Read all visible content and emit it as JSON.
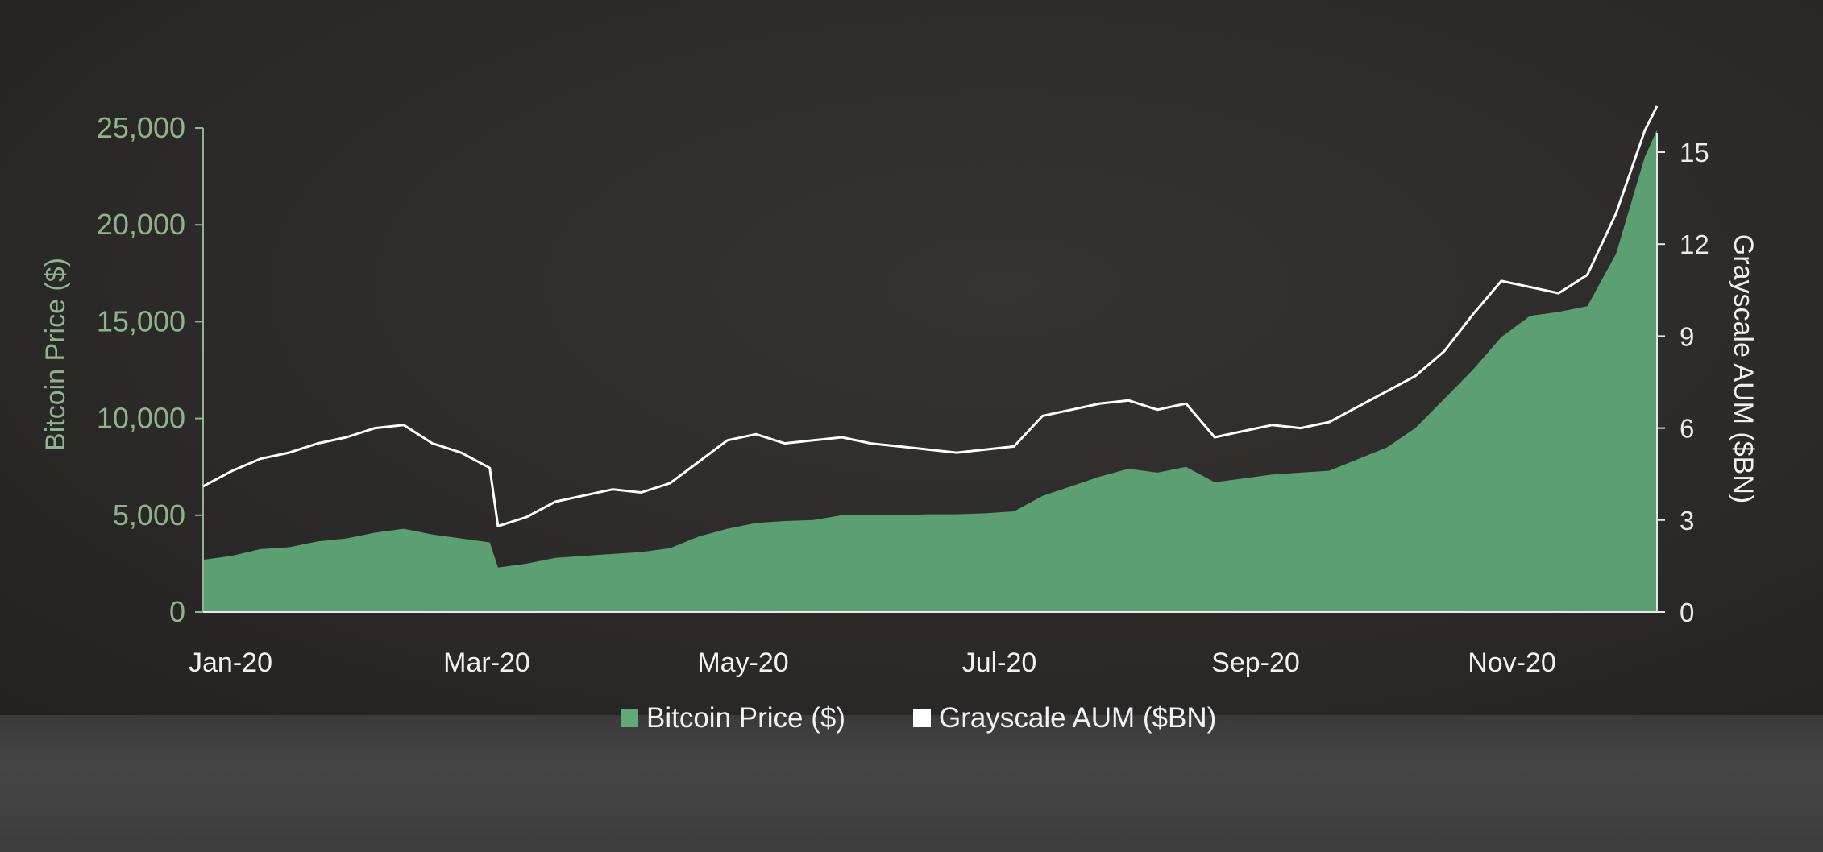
{
  "chart_data": {
    "type": "area",
    "title": "",
    "x_tick_labels": [
      "Jan-20",
      "Mar-20",
      "May-20",
      "Jul-20",
      "Sep-20",
      "Nov-20"
    ],
    "left_axis": {
      "label": "Bitcoin Price ($)",
      "ylim": [
        0,
        25000
      ],
      "ticks": [
        "0",
        "5,000",
        "10,000",
        "15,000",
        "20,000",
        "25,000"
      ],
      "color": "#8fb38f"
    },
    "right_axis": {
      "label": "Grayscale AUM ($BN)",
      "ylim": [
        0,
        15
      ],
      "ticks": [
        "0",
        "3",
        "6",
        "9",
        "12",
        "15"
      ],
      "color": "#f0f0f0"
    },
    "x_range": [
      "2020-01-01",
      "2020-12-21"
    ],
    "grid": false,
    "legend_position": "bottom-center",
    "series": [
      {
        "name": "Bitcoin Price ($)",
        "type": "area",
        "axis": "left",
        "color": "#5fa97a",
        "points": [
          [
            "2020-01-01",
            2700
          ],
          [
            "2020-01-08",
            2900
          ],
          [
            "2020-01-15",
            3250
          ],
          [
            "2020-01-22",
            3350
          ],
          [
            "2020-01-29",
            3650
          ],
          [
            "2020-02-05",
            3800
          ],
          [
            "2020-02-12",
            4100
          ],
          [
            "2020-02-19",
            4300
          ],
          [
            "2020-02-26",
            4000
          ],
          [
            "2020-03-04",
            3800
          ],
          [
            "2020-03-11",
            3600
          ],
          [
            "2020-03-13",
            2300
          ],
          [
            "2020-03-20",
            2500
          ],
          [
            "2020-03-27",
            2800
          ],
          [
            "2020-04-03",
            2900
          ],
          [
            "2020-04-10",
            3000
          ],
          [
            "2020-04-17",
            3100
          ],
          [
            "2020-04-24",
            3300
          ],
          [
            "2020-05-01",
            3900
          ],
          [
            "2020-05-08",
            4300
          ],
          [
            "2020-05-15",
            4600
          ],
          [
            "2020-05-22",
            4700
          ],
          [
            "2020-05-29",
            4750
          ],
          [
            "2020-06-05",
            5000
          ],
          [
            "2020-06-12",
            5000
          ],
          [
            "2020-06-19",
            5000
          ],
          [
            "2020-06-26",
            5050
          ],
          [
            "2020-07-03",
            5050
          ],
          [
            "2020-07-10",
            5100
          ],
          [
            "2020-07-17",
            5200
          ],
          [
            "2020-07-24",
            6000
          ],
          [
            "2020-07-31",
            6500
          ],
          [
            "2020-08-07",
            7000
          ],
          [
            "2020-08-14",
            7400
          ],
          [
            "2020-08-21",
            7200
          ],
          [
            "2020-08-28",
            7500
          ],
          [
            "2020-09-04",
            6700
          ],
          [
            "2020-09-11",
            6900
          ],
          [
            "2020-09-18",
            7100
          ],
          [
            "2020-09-25",
            7200
          ],
          [
            "2020-10-02",
            7300
          ],
          [
            "2020-10-09",
            7900
          ],
          [
            "2020-10-16",
            8500
          ],
          [
            "2020-10-23",
            9500
          ],
          [
            "2020-10-30",
            11000
          ],
          [
            "2020-11-06",
            12500
          ],
          [
            "2020-11-13",
            14200
          ],
          [
            "2020-11-20",
            15300
          ],
          [
            "2020-11-27",
            15500
          ],
          [
            "2020-12-04",
            15800
          ],
          [
            "2020-12-11",
            18500
          ],
          [
            "2020-12-18",
            23500
          ],
          [
            "2020-12-21",
            24900
          ]
        ]
      },
      {
        "name": "Grayscale AUM ($BN)",
        "type": "line",
        "axis": "right",
        "color": "#ffffff",
        "points": [
          [
            "2020-01-01",
            4.1
          ],
          [
            "2020-01-08",
            4.6
          ],
          [
            "2020-01-15",
            5.0
          ],
          [
            "2020-01-22",
            5.2
          ],
          [
            "2020-01-29",
            5.5
          ],
          [
            "2020-02-05",
            5.7
          ],
          [
            "2020-02-12",
            6.0
          ],
          [
            "2020-02-19",
            6.1
          ],
          [
            "2020-02-26",
            5.5
          ],
          [
            "2020-03-04",
            5.2
          ],
          [
            "2020-03-11",
            4.7
          ],
          [
            "2020-03-13",
            2.8
          ],
          [
            "2020-03-20",
            3.1
          ],
          [
            "2020-03-27",
            3.6
          ],
          [
            "2020-04-03",
            3.8
          ],
          [
            "2020-04-10",
            4.0
          ],
          [
            "2020-04-17",
            3.9
          ],
          [
            "2020-04-24",
            4.2
          ],
          [
            "2020-05-01",
            4.9
          ],
          [
            "2020-05-08",
            5.6
          ],
          [
            "2020-05-15",
            5.8
          ],
          [
            "2020-05-22",
            5.5
          ],
          [
            "2020-05-29",
            5.6
          ],
          [
            "2020-06-05",
            5.7
          ],
          [
            "2020-06-12",
            5.5
          ],
          [
            "2020-06-19",
            5.4
          ],
          [
            "2020-06-26",
            5.3
          ],
          [
            "2020-07-03",
            5.2
          ],
          [
            "2020-07-10",
            5.3
          ],
          [
            "2020-07-17",
            5.4
          ],
          [
            "2020-07-24",
            6.4
          ],
          [
            "2020-07-31",
            6.6
          ],
          [
            "2020-08-07",
            6.8
          ],
          [
            "2020-08-14",
            6.9
          ],
          [
            "2020-08-21",
            6.6
          ],
          [
            "2020-08-28",
            6.8
          ],
          [
            "2020-09-04",
            5.7
          ],
          [
            "2020-09-11",
            5.9
          ],
          [
            "2020-09-18",
            6.1
          ],
          [
            "2020-09-25",
            6.0
          ],
          [
            "2020-10-02",
            6.2
          ],
          [
            "2020-10-09",
            6.7
          ],
          [
            "2020-10-16",
            7.2
          ],
          [
            "2020-10-23",
            7.7
          ],
          [
            "2020-10-30",
            8.5
          ],
          [
            "2020-11-06",
            9.7
          ],
          [
            "2020-11-13",
            10.8
          ],
          [
            "2020-11-20",
            10.6
          ],
          [
            "2020-11-27",
            10.4
          ],
          [
            "2020-12-04",
            11.0
          ],
          [
            "2020-12-11",
            13.0
          ],
          [
            "2020-12-18",
            15.7
          ],
          [
            "2020-12-21",
            16.5
          ]
        ]
      }
    ]
  },
  "legend": [
    {
      "label": "Bitcoin Price ($)",
      "color": "#5fa97a"
    },
    {
      "label": "Grayscale AUM ($BN)",
      "color": "#ffffff"
    }
  ]
}
